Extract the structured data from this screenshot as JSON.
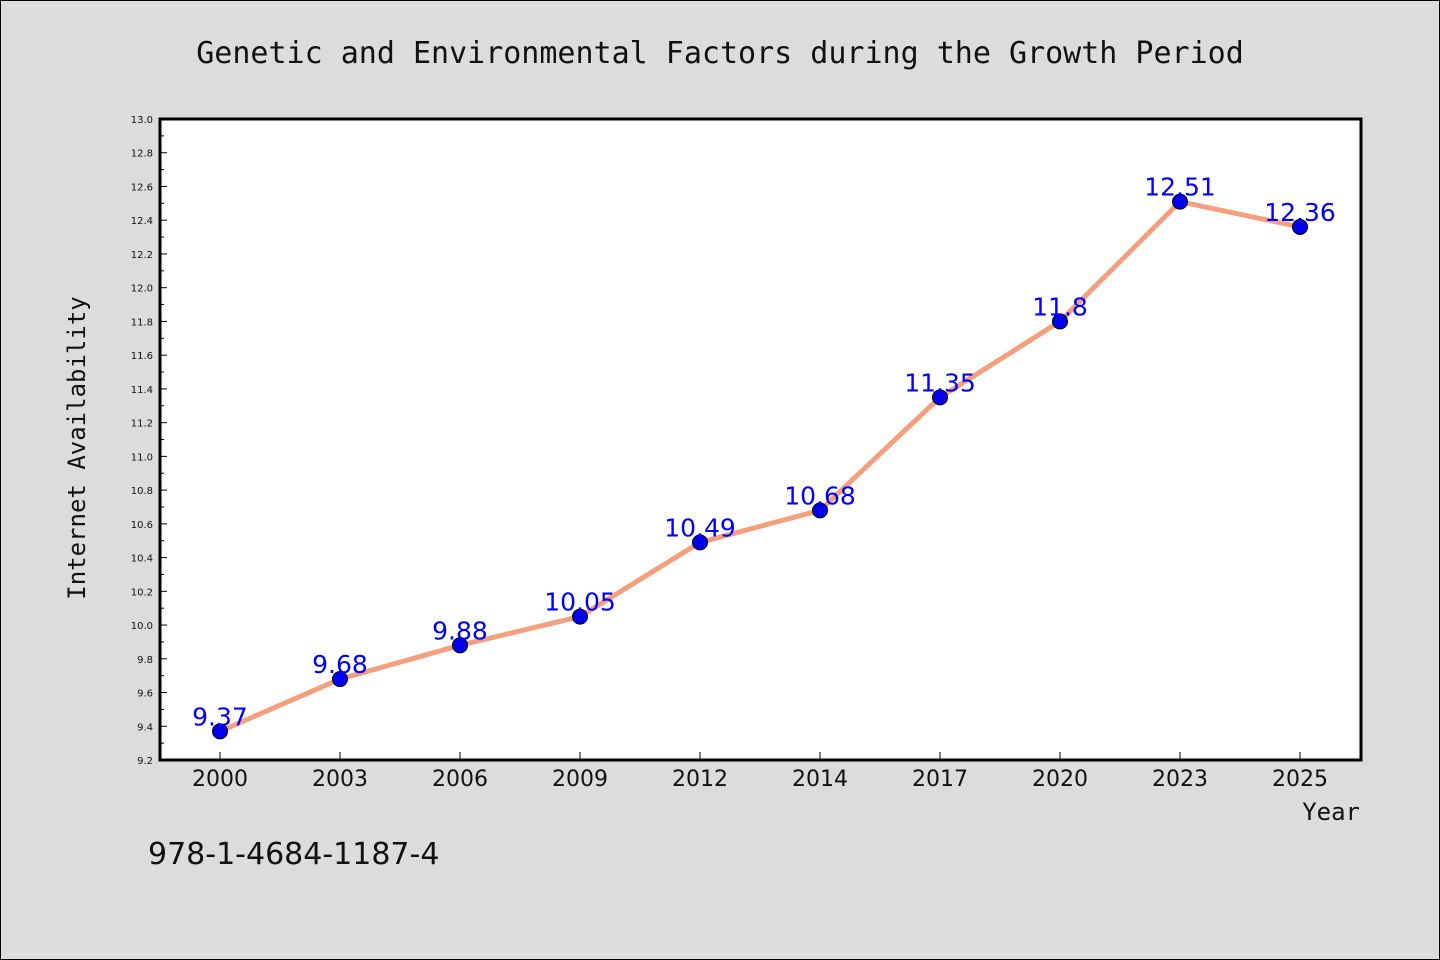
{
  "chart_data": {
    "type": "line",
    "title": "Genetic and Environmental Factors during the Growth Period",
    "xlabel": "Year",
    "ylabel": "Internet Availability",
    "categories": [
      "2000",
      "2003",
      "2006",
      "2009",
      "2012",
      "2014",
      "2017",
      "2020",
      "2023",
      "2025"
    ],
    "series": [
      {
        "values": [
          9.37,
          9.68,
          9.88,
          10.05,
          10.49,
          10.68,
          11.35,
          11.8,
          12.51,
          12.36
        ]
      }
    ],
    "data_labels": [
      "9.37",
      "9.68",
      "9.88",
      "10.05",
      "10.49",
      "10.68",
      "11.35",
      "11.8",
      "12.51",
      "12.36"
    ],
    "yticks": [
      "9.2",
      "9.4",
      "9.6",
      "9.8",
      "10.0",
      "10.2",
      "10.4",
      "10.6",
      "10.8",
      "11.0",
      "11.2",
      "11.4",
      "11.6",
      "11.8",
      "12.0",
      "12.2",
      "12.4",
      "12.6",
      "12.8",
      "13.0"
    ],
    "ylim": [
      9.2,
      13.0
    ],
    "grid": false,
    "legend": "none",
    "colors": {
      "line": "#f4a07e",
      "marker": "#0000ee",
      "label": "#0000ff",
      "background": "#dcdcdc",
      "plot_background": "#ffffff"
    }
  },
  "annotation": {
    "isbn": "978-1-4684-1187-4"
  }
}
